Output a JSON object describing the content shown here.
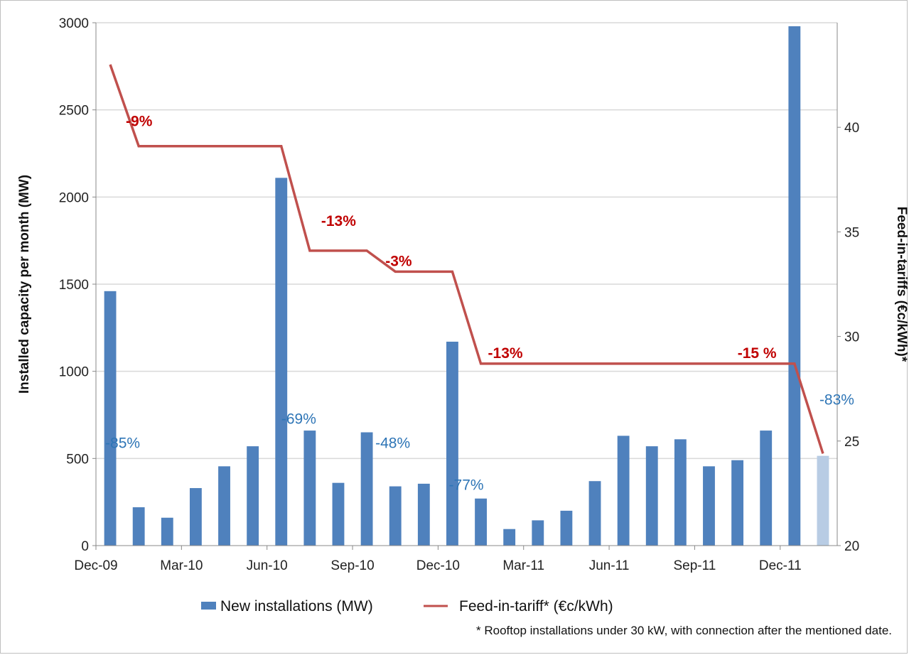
{
  "chart_data": {
    "type": "bar",
    "title": "",
    "categories": [
      "Dec-09",
      "Jan-10",
      "Feb-10",
      "Mar-10",
      "Apr-10",
      "May-10",
      "Jun-10",
      "Jul-10",
      "Aug-10",
      "Sep-10",
      "Oct-10",
      "Nov-10",
      "Dec-10",
      "Jan-11",
      "Feb-11",
      "Mar-11",
      "Apr-11",
      "May-11",
      "Jun-11",
      "Jul-11",
      "Aug-11",
      "Sep-11",
      "Oct-11",
      "Nov-11",
      "Dec-11",
      "Jan-12"
    ],
    "x_tick_labels": [
      "Dec-09",
      "Mar-10",
      "Jun-10",
      "Sep-10",
      "Dec-10",
      "Mar-11",
      "Jun-11",
      "Sep-11",
      "Dec-11"
    ],
    "ylabel": "Installed capacity per month (MW)",
    "ylim": [
      0,
      3000
    ],
    "y_ticks": [
      "0",
      "500",
      "1000",
      "1500",
      "2000",
      "2500",
      "3000"
    ],
    "y2label": "Feed-in-tariffs (€c/kWh)*",
    "y2lim": [
      20,
      45
    ],
    "y2_ticks": [
      "20",
      "25",
      "30",
      "35",
      "40"
    ],
    "grid": "horizontal",
    "legend_position": "bottom",
    "series": [
      {
        "name": "New installations (MW)",
        "type": "bar",
        "color": "#4f81bd",
        "values": [
          1460,
          220,
          160,
          330,
          455,
          570,
          2110,
          660,
          360,
          650,
          340,
          355,
          1170,
          270,
          95,
          145,
          200,
          370,
          630,
          570,
          610,
          455,
          490,
          660,
          2980,
          515
        ],
        "highlight_last_color": "#b8cce4"
      },
      {
        "name": "Feed-in-tariff* (€c/kWh)",
        "type": "line",
        "color": "#c0504d",
        "points": [
          {
            "x": "Dec-09",
            "y": 43.0
          },
          {
            "x": "Jan-10",
            "y": 39.1
          },
          {
            "x": "Jun-10",
            "y": 39.1
          },
          {
            "x": "Jul-10",
            "y": 34.1
          },
          {
            "x": "Sep-10",
            "y": 34.1
          },
          {
            "x": "Oct-10",
            "y": 33.1
          },
          {
            "x": "Dec-10",
            "y": 33.1
          },
          {
            "x": "Jan-11",
            "y": 28.7
          },
          {
            "x": "Dec-11",
            "y": 28.7
          },
          {
            "x": "Jan-12",
            "y": 24.4
          }
        ]
      }
    ],
    "tariff_annotations": [
      {
        "text": "-9%",
        "x": "Dec-09"
      },
      {
        "text": "-13%",
        "x": "Jul-10"
      },
      {
        "text": "-3%",
        "x": "Oct-10"
      },
      {
        "text": "-13%",
        "x": "Jan-11"
      },
      {
        "text": "-15 %",
        "x": "Nov-11"
      }
    ],
    "installation_annotations": [
      {
        "text": "-85%",
        "x": "Dec-09"
      },
      {
        "text": "-69%",
        "x": "Jul-10"
      },
      {
        "text": "-48%",
        "x": "Sep-10"
      },
      {
        "text": "-77%",
        "x": "Jan-11"
      },
      {
        "text": "-83%",
        "x": "Jan-12"
      }
    ],
    "annotation_colors": {
      "tariff": "#c00000",
      "installation": "#2e75b6"
    },
    "footnote": "* Rooftop installations under 30 kW, with connection after the mentioned date."
  }
}
